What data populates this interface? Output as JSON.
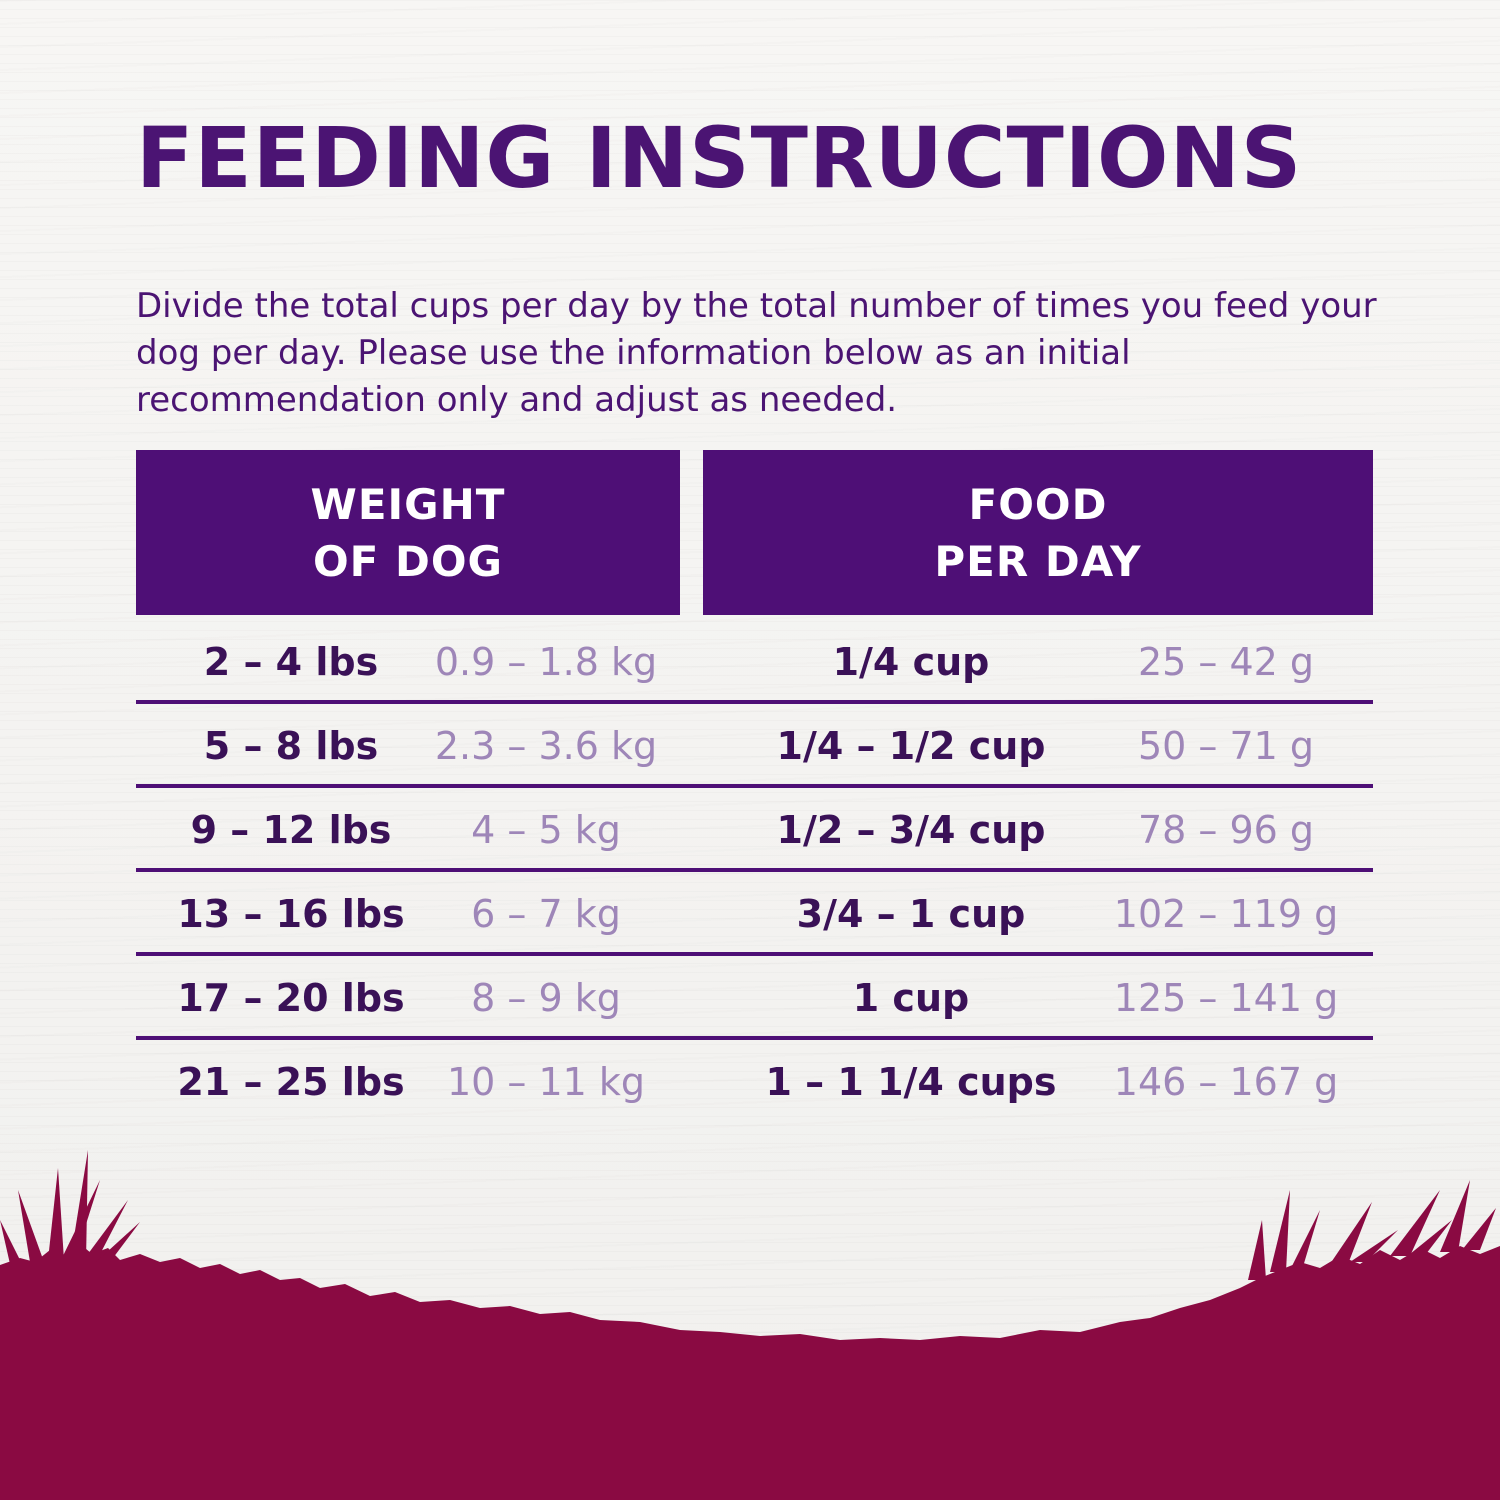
{
  "title": "FEEDING INSTRUCTIONS",
  "intro": "Divide the total cups per day by the total number of times you feed your dog per day. Please use the information below as an initial recommendation only and adjust as needed.",
  "table": {
    "headers": {
      "weight": {
        "line1": "WEIGHT",
        "line2": "OF DOG"
      },
      "food": {
        "line1": "FOOD",
        "line2": "PER DAY"
      }
    },
    "rows": [
      {
        "lbs": "2 – 4 lbs",
        "kg": "0.9 – 1.8 kg",
        "cups": "1/4 cup",
        "grams": "25 – 42 g"
      },
      {
        "lbs": "5 – 8 lbs",
        "kg": "2.3 – 3.6 kg",
        "cups": "1/4 – 1/2 cup",
        "grams": "50 – 71 g"
      },
      {
        "lbs": "9 – 12 lbs",
        "kg": "4 – 5 kg",
        "cups": "1/2 – 3/4 cup",
        "grams": "78 – 96 g"
      },
      {
        "lbs": "13 – 16 lbs",
        "kg": "6 – 7 kg",
        "cups": "3/4 – 1 cup",
        "grams": "102 – 119 g"
      },
      {
        "lbs": "17 – 20 lbs",
        "kg": "8 – 9 kg",
        "cups": "1 cup",
        "grams": "125 – 141 g"
      },
      {
        "lbs": "21 – 25 lbs",
        "kg": "10 – 11 kg",
        "cups": "1 – 1 1/4 cups",
        "grams": "146 – 167 g"
      }
    ]
  },
  "colors": {
    "brand_purple": "#4e0f76",
    "text_dark": "#3a1157",
    "text_light": "#9e86b8",
    "grass": "#8a0a42"
  }
}
